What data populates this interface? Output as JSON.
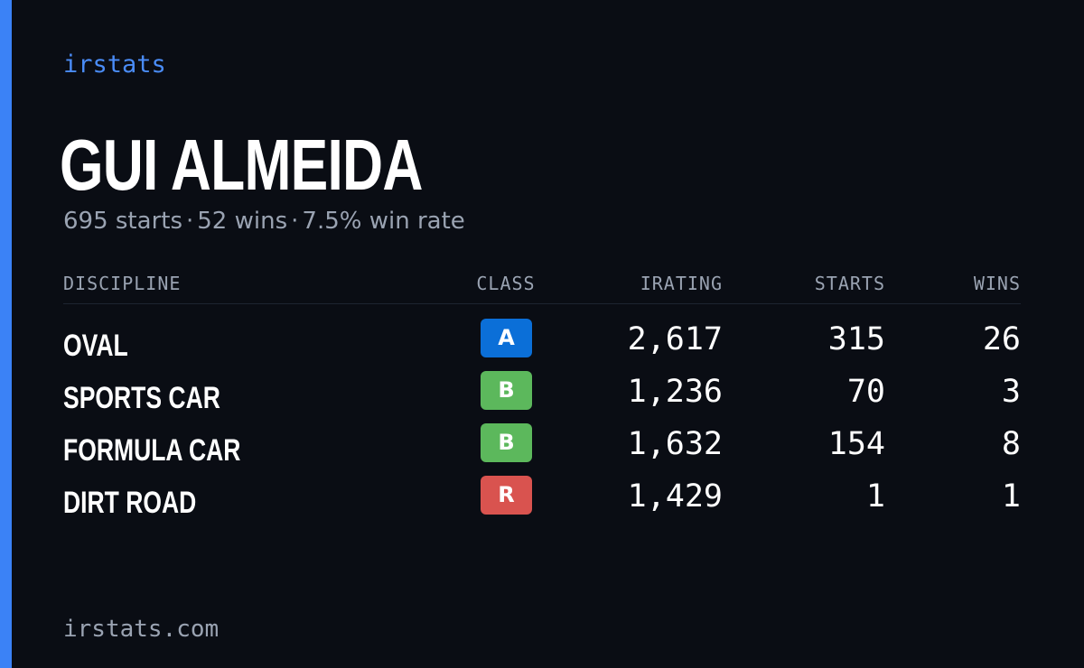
{
  "brand": "irstats",
  "driver": {
    "name": "GUI ALMEIDA"
  },
  "summary": {
    "starts": "695 starts",
    "wins": "52 wins",
    "win_rate": "7.5% win rate",
    "separator": "·"
  },
  "table": {
    "headers": {
      "discipline": "DISCIPLINE",
      "class": "CLASS",
      "irating": "IRATING",
      "starts": "STARTS",
      "wins": "WINS"
    },
    "rows": [
      {
        "discipline": "OVAL",
        "class": "A",
        "class_color": "#0b6fd8",
        "irating": "2,617",
        "starts": "315",
        "wins": "26"
      },
      {
        "discipline": "SPORTS CAR",
        "class": "B",
        "class_color": "#5cb85c",
        "irating": "1,236",
        "starts": "70",
        "wins": "3"
      },
      {
        "discipline": "FORMULA CAR",
        "class": "B",
        "class_color": "#5cb85c",
        "irating": "1,632",
        "starts": "154",
        "wins": "8"
      },
      {
        "discipline": "DIRT ROAD",
        "class": "R",
        "class_color": "#d9534f",
        "irating": "1,429",
        "starts": "1",
        "wins": "1"
      }
    ]
  },
  "footer": {
    "site": "irstats.com"
  },
  "colors": {
    "accent": "#3b82f6",
    "background": "#0a0d14"
  }
}
